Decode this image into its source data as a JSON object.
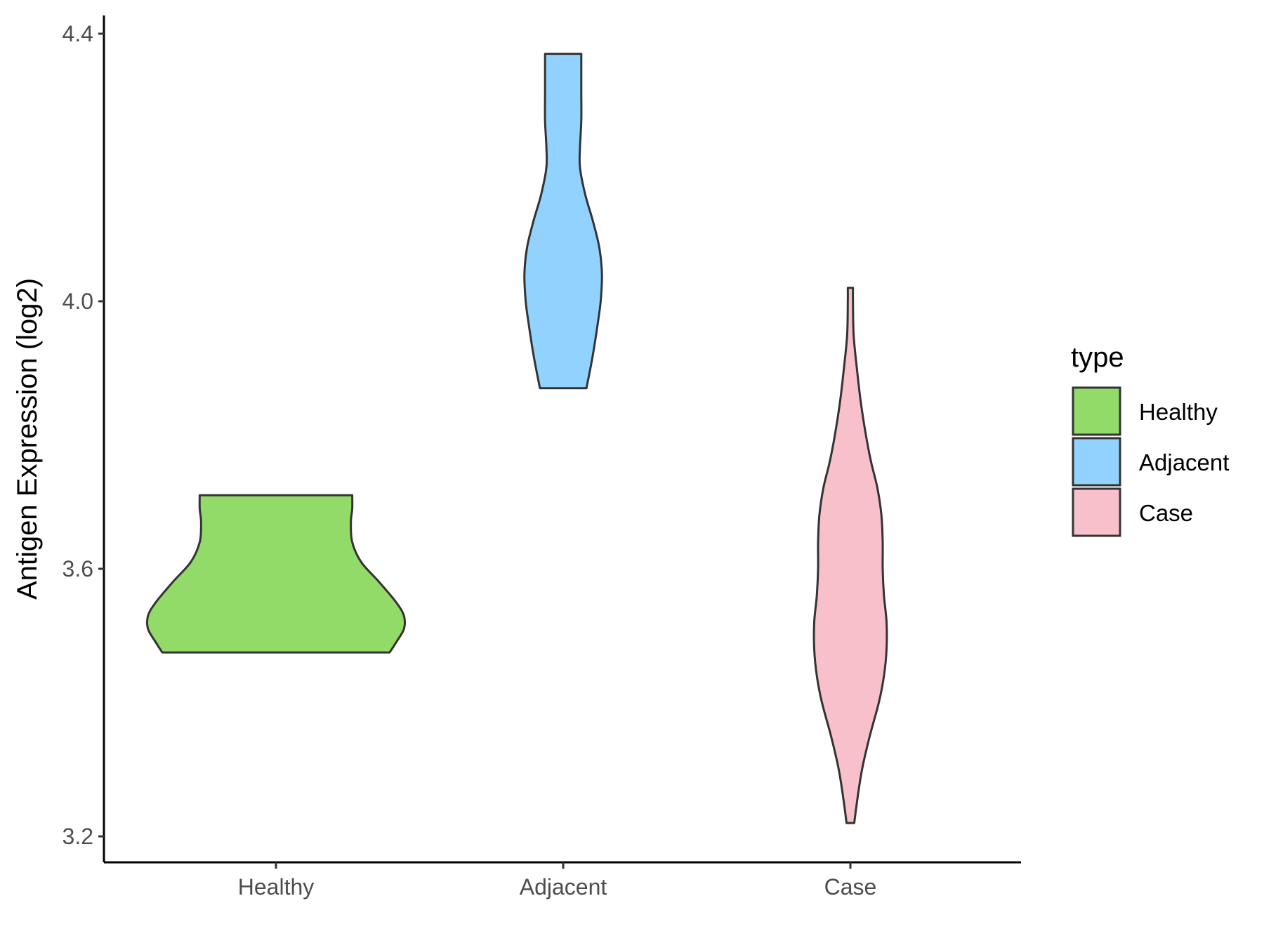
{
  "chart_data": {
    "type": "violin",
    "title": "",
    "xlabel": "",
    "ylabel": "Antigen Expression (log2)",
    "ylim": [
      3.16,
      4.43
    ],
    "yticks": [
      3.2,
      3.6,
      4.0,
      4.4
    ],
    "ytick_labels": [
      "3.2",
      "3.6",
      "4.0",
      "4.4"
    ],
    "categories": [
      "Healthy",
      "Adjacent",
      "Case"
    ],
    "grid": false,
    "legend": {
      "title": "type",
      "placement": "right",
      "entries": [
        "Healthy",
        "Adjacent",
        "Case"
      ]
    },
    "colors": {
      "Healthy": "#93DB69",
      "Adjacent": "#92D2FF",
      "Case": "#F8C0CB",
      "outline": "#333333"
    },
    "series": [
      {
        "category": "Healthy",
        "min": 3.475,
        "max": 3.71,
        "density": [
          {
            "y": 3.475,
            "w": 0.88
          },
          {
            "y": 3.49,
            "w": 0.93
          },
          {
            "y": 3.51,
            "w": 0.99
          },
          {
            "y": 3.53,
            "w": 0.99
          },
          {
            "y": 3.55,
            "w": 0.93
          },
          {
            "y": 3.58,
            "w": 0.8
          },
          {
            "y": 3.61,
            "w": 0.66
          },
          {
            "y": 3.64,
            "w": 0.59
          },
          {
            "y": 3.67,
            "w": 0.58
          },
          {
            "y": 3.69,
            "w": 0.59
          },
          {
            "y": 3.71,
            "w": 0.59
          }
        ]
      },
      {
        "category": "Adjacent",
        "min": 3.87,
        "max": 4.37,
        "density": [
          {
            "y": 3.87,
            "w": 0.18
          },
          {
            "y": 3.92,
            "w": 0.23
          },
          {
            "y": 3.97,
            "w": 0.27
          },
          {
            "y": 4.0,
            "w": 0.29
          },
          {
            "y": 4.04,
            "w": 0.3
          },
          {
            "y": 4.08,
            "w": 0.28
          },
          {
            "y": 4.12,
            "w": 0.23
          },
          {
            "y": 4.16,
            "w": 0.17
          },
          {
            "y": 4.2,
            "w": 0.13
          },
          {
            "y": 4.23,
            "w": 0.13
          },
          {
            "y": 4.27,
            "w": 0.14
          },
          {
            "y": 4.31,
            "w": 0.14
          },
          {
            "y": 4.35,
            "w": 0.14
          },
          {
            "y": 4.37,
            "w": 0.14
          }
        ]
      },
      {
        "category": "Case",
        "min": 3.22,
        "max": 4.02,
        "density": [
          {
            "y": 3.22,
            "w": 0.03
          },
          {
            "y": 3.25,
            "w": 0.05
          },
          {
            "y": 3.3,
            "w": 0.09
          },
          {
            "y": 3.35,
            "w": 0.15
          },
          {
            "y": 3.4,
            "w": 0.22
          },
          {
            "y": 3.44,
            "w": 0.26
          },
          {
            "y": 3.48,
            "w": 0.28
          },
          {
            "y": 3.52,
            "w": 0.28
          },
          {
            "y": 3.56,
            "w": 0.26
          },
          {
            "y": 3.6,
            "w": 0.25
          },
          {
            "y": 3.64,
            "w": 0.25
          },
          {
            "y": 3.68,
            "w": 0.24
          },
          {
            "y": 3.72,
            "w": 0.21
          },
          {
            "y": 3.76,
            "w": 0.16
          },
          {
            "y": 3.8,
            "w": 0.12
          },
          {
            "y": 3.85,
            "w": 0.08
          },
          {
            "y": 3.9,
            "w": 0.05
          },
          {
            "y": 3.95,
            "w": 0.025
          },
          {
            "y": 4.0,
            "w": 0.02
          },
          {
            "y": 4.02,
            "w": 0.02
          }
        ]
      }
    ]
  }
}
